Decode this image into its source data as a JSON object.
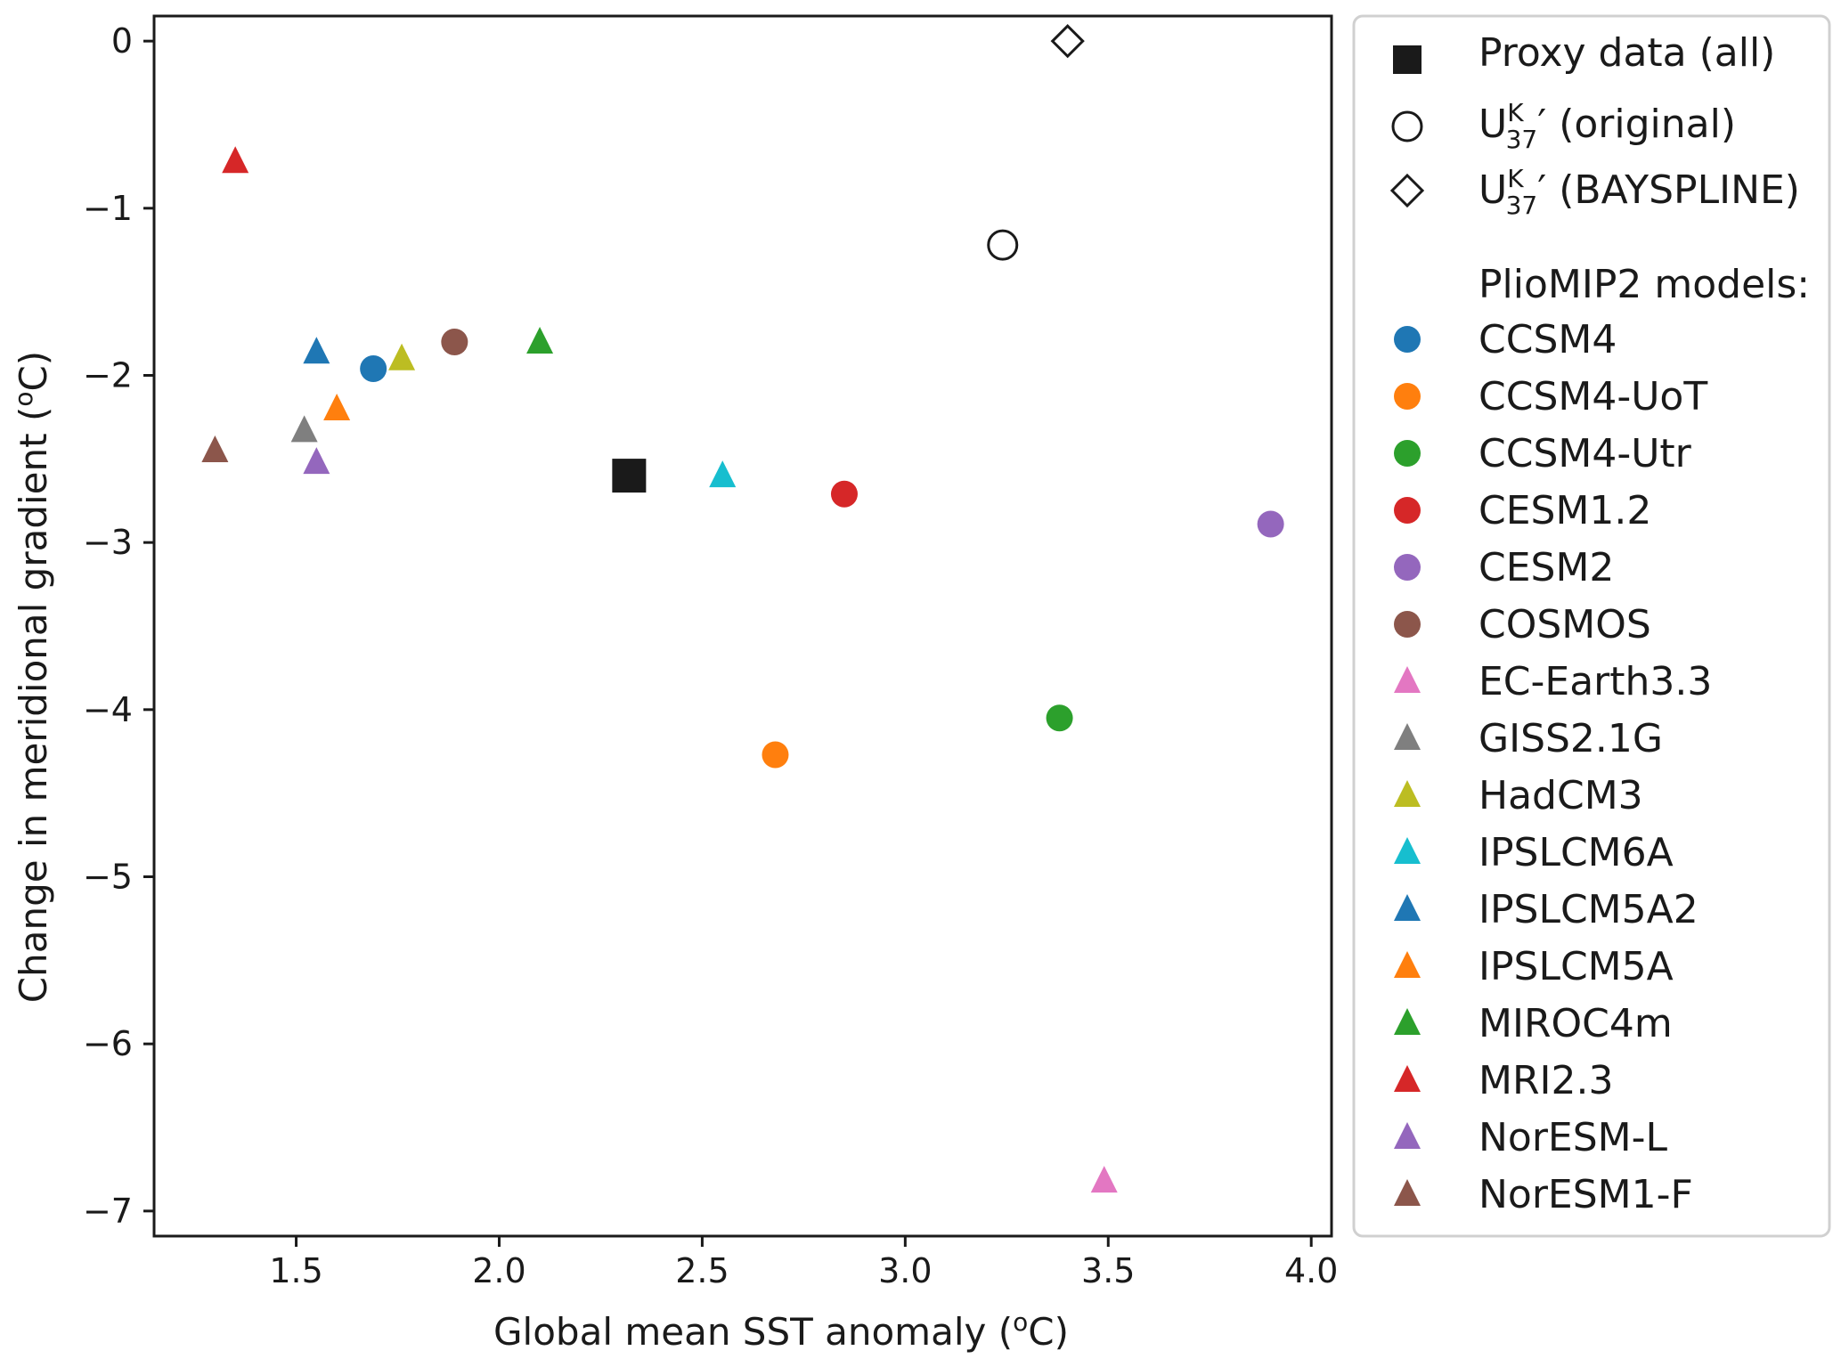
{
  "chart_data": {
    "type": "scatter",
    "xlabel": "Global mean SST anomaly",
    "xlabel_unit_open": " (",
    "xlabel_unit_sup": "o",
    "xlabel_unit_rest": "C)",
    "ylabel": "Change in meridional gradient",
    "ylabel_unit_open": " (",
    "ylabel_unit_sup": "o",
    "ylabel_unit_rest": "C)",
    "xlim": [
      1.15,
      4.05
    ],
    "ylim": [
      -7.15,
      0.15
    ],
    "xticks": [
      1.5,
      2.0,
      2.5,
      3.0,
      3.5,
      4.0
    ],
    "xtick_labels": [
      "1.5",
      "2.0",
      "2.5",
      "3.0",
      "3.5",
      "4.0"
    ],
    "yticks": [
      0,
      -1,
      -2,
      -3,
      -4,
      -5,
      -6,
      -7
    ],
    "ytick_labels": [
      "0",
      "−1",
      "−2",
      "−3",
      "−4",
      "−5",
      "−6",
      "−7"
    ],
    "grid": false,
    "legend_position": "outside-right",
    "proxy_series": [
      {
        "name": "Proxy data (all)",
        "marker": "square",
        "x": 2.32,
        "y": -2.6
      },
      {
        "name_main": "U",
        "name_sup": "K",
        "name_sub": "37",
        "name_rest": "′ (original)",
        "marker": "circle-open",
        "x": 3.24,
        "y": -1.22
      },
      {
        "name_main": "U",
        "name_sup": "K",
        "name_sub": "37",
        "name_rest": "′ (BAYSPLINE)",
        "marker": "diamond-open",
        "x": 3.4,
        "y": 0.0
      }
    ],
    "models_heading": "PlioMIP2 models:",
    "models": [
      {
        "name": "CCSM4",
        "marker": "circle",
        "color": "#1f77b4",
        "x": 1.69,
        "y": -1.96
      },
      {
        "name": "CCSM4-UoT",
        "marker": "circle",
        "color": "#ff7f0e",
        "x": 2.68,
        "y": -4.27
      },
      {
        "name": "CCSM4-Utr",
        "marker": "circle",
        "color": "#2ca02c",
        "x": 3.38,
        "y": -4.05
      },
      {
        "name": "CESM1.2",
        "marker": "circle",
        "color": "#d62728",
        "x": 2.85,
        "y": -2.71
      },
      {
        "name": "CESM2",
        "marker": "circle",
        "color": "#9467bd",
        "x": 3.9,
        "y": -2.89
      },
      {
        "name": "COSMOS",
        "marker": "circle",
        "color": "#8c564b",
        "x": 1.89,
        "y": -1.8
      },
      {
        "name": "EC-Earth3.3",
        "marker": "triangle",
        "color": "#e377c2",
        "x": 3.49,
        "y": -6.82
      },
      {
        "name": "GISS2.1G",
        "marker": "triangle",
        "color": "#7f7f7f",
        "x": 1.52,
        "y": -2.33
      },
      {
        "name": "HadCM3",
        "marker": "triangle",
        "color": "#bcbd22",
        "x": 1.76,
        "y": -1.9
      },
      {
        "name": "IPSLCM6A",
        "marker": "triangle",
        "color": "#17becf",
        "x": 2.55,
        "y": -2.6
      },
      {
        "name": "IPSLCM5A2",
        "marker": "triangle",
        "color": "#1f77b4",
        "x": 1.55,
        "y": -1.86
      },
      {
        "name": "IPSLCM5A",
        "marker": "triangle",
        "color": "#ff7f0e",
        "x": 1.6,
        "y": -2.2
      },
      {
        "name": "MIROC4m",
        "marker": "triangle",
        "color": "#2ca02c",
        "x": 2.1,
        "y": -1.8
      },
      {
        "name": "MRI2.3",
        "marker": "triangle",
        "color": "#d62728",
        "x": 1.35,
        "y": -0.72
      },
      {
        "name": "NorESM-L",
        "marker": "triangle",
        "color": "#9467bd",
        "x": 1.55,
        "y": -2.52
      },
      {
        "name": "NorESM1-F",
        "marker": "triangle",
        "color": "#8c564b",
        "x": 1.3,
        "y": -2.45
      }
    ]
  }
}
